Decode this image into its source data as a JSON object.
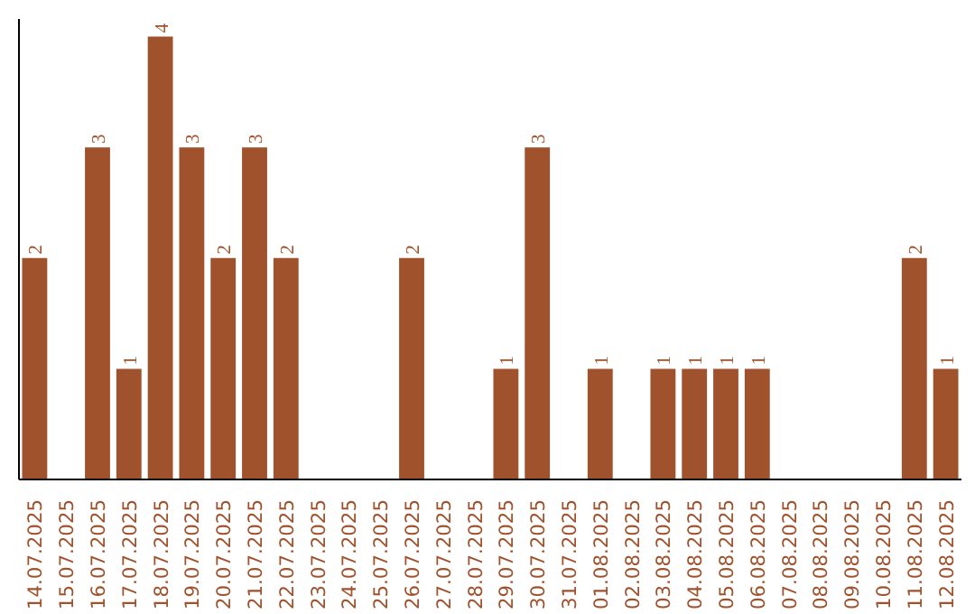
{
  "chart_data": {
    "type": "bar",
    "categories": [
      "14.07.2025",
      "15.07.2025",
      "16.07.2025",
      "17.07.2025",
      "18.07.2025",
      "19.07.2025",
      "20.07.2025",
      "21.07.2025",
      "22.07.2025",
      "23.07.2025",
      "24.07.2025",
      "25.07.2025",
      "26.07.2025",
      "27.07.2025",
      "28.07.2025",
      "29.07.2025",
      "30.07.2025",
      "31.07.2025",
      "01.08.2025",
      "02.08.2025",
      "03.08.2025",
      "04.08.2025",
      "05.08.2025",
      "06.08.2025",
      "07.08.2025",
      "08.08.2025",
      "09.08.2025",
      "10.08.2025",
      "11.08.2025",
      "12.08.2025"
    ],
    "values": [
      2,
      0,
      3,
      1,
      4,
      3,
      2,
      3,
      2,
      0,
      0,
      0,
      2,
      0,
      0,
      1,
      3,
      0,
      1,
      0,
      1,
      1,
      1,
      1,
      0,
      0,
      0,
      0,
      2,
      1
    ],
    "value_labels": [
      "2",
      null,
      "3",
      "1",
      "4",
      "3",
      "2",
      "3",
      "2",
      null,
      null,
      null,
      "2",
      null,
      null,
      "1",
      "3",
      null,
      "1",
      null,
      "1",
      "1",
      "1",
      "1",
      null,
      null,
      null,
      null,
      "2",
      "1"
    ],
    "color": "#a0522d",
    "tick_labels": "x",
    "grid": false
  }
}
